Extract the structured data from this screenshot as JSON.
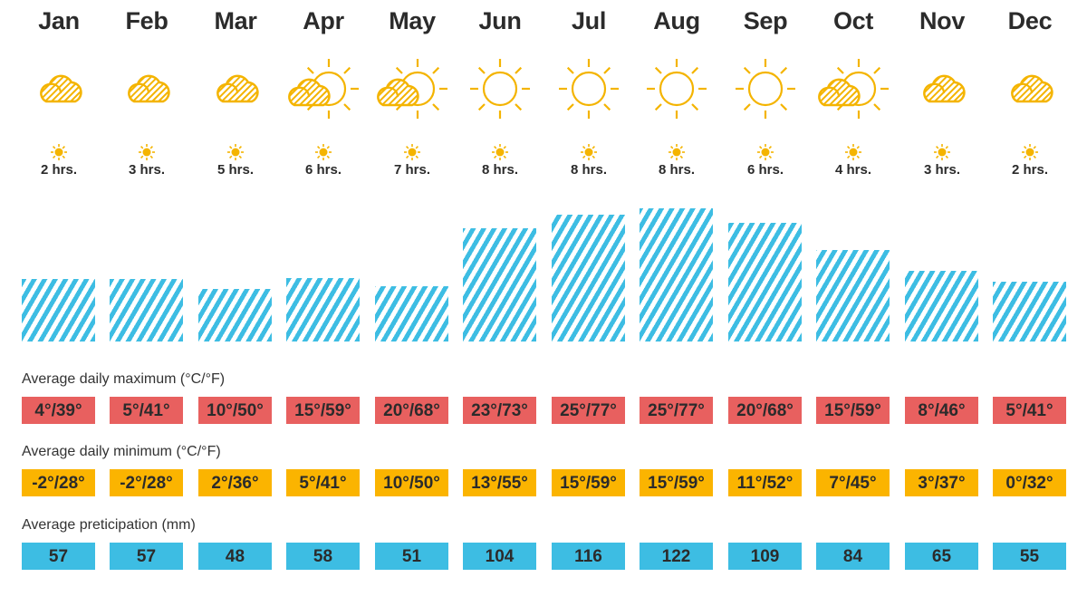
{
  "labels": {
    "max": "Average daily maximum (°C/°F)",
    "min": "Average daily minimum (°C/°F)",
    "precip": "Average preticipation (mm)"
  },
  "colors": {
    "max": "#e8605f",
    "min": "#fbb400",
    "precip": "#3dbde3",
    "icon": "#f4b400"
  },
  "months": [
    {
      "name": "Jan",
      "icon": "cloud-icon",
      "sun": "2 hrs.",
      "max": "4°/39°",
      "min": "-2°/28°",
      "precip": "57"
    },
    {
      "name": "Feb",
      "icon": "cloud-icon",
      "sun": "3 hrs.",
      "max": "5°/41°",
      "min": "-2°/28°",
      "precip": "57"
    },
    {
      "name": "Mar",
      "icon": "cloud-icon",
      "sun": "5 hrs.",
      "max": "10°/50°",
      "min": "2°/36°",
      "precip": "48"
    },
    {
      "name": "Apr",
      "icon": "partly-sunny-icon",
      "sun": "6 hrs.",
      "max": "15°/59°",
      "min": "5°/41°",
      "precip": "58"
    },
    {
      "name": "May",
      "icon": "partly-sunny-icon",
      "sun": "7 hrs.",
      "max": "20°/68°",
      "min": "10°/50°",
      "precip": "51"
    },
    {
      "name": "Jun",
      "icon": "sun-icon",
      "sun": "8 hrs.",
      "max": "23°/73°",
      "min": "13°/55°",
      "precip": "104"
    },
    {
      "name": "Jul",
      "icon": "sun-icon",
      "sun": "8 hrs.",
      "max": "25°/77°",
      "min": "15°/59°",
      "precip": "116"
    },
    {
      "name": "Aug",
      "icon": "sun-icon",
      "sun": "8 hrs.",
      "max": "25°/77°",
      "min": "15°/59°",
      "precip": "122"
    },
    {
      "name": "Sep",
      "icon": "sun-icon",
      "sun": "6 hrs.",
      "max": "20°/68°",
      "min": "11°/52°",
      "precip": "109"
    },
    {
      "name": "Oct",
      "icon": "partly-sunny-icon",
      "sun": "4 hrs.",
      "max": "15°/59°",
      "min": "7°/45°",
      "precip": "84"
    },
    {
      "name": "Nov",
      "icon": "cloud-icon",
      "sun": "3 hrs.",
      "max": "8°/46°",
      "min": "3°/37°",
      "precip": "65"
    },
    {
      "name": "Dec",
      "icon": "cloud-icon",
      "sun": "2 hrs.",
      "max": "5°/41°",
      "min": "0°/32°",
      "precip": "55"
    }
  ],
  "chart_data": {
    "type": "bar",
    "title": "",
    "categories": [
      "Jan",
      "Feb",
      "Mar",
      "Apr",
      "May",
      "Jun",
      "Jul",
      "Aug",
      "Sep",
      "Oct",
      "Nov",
      "Dec"
    ],
    "series": [
      {
        "name": "Average preticipation (mm)",
        "values": [
          57,
          57,
          48,
          58,
          51,
          104,
          116,
          122,
          109,
          84,
          65,
          55
        ]
      },
      {
        "name": "Average daily maximum (°C)",
        "values": [
          4,
          5,
          10,
          15,
          20,
          23,
          25,
          25,
          20,
          15,
          8,
          5
        ]
      },
      {
        "name": "Average daily maximum (°F)",
        "values": [
          39,
          41,
          50,
          59,
          68,
          73,
          77,
          77,
          68,
          59,
          46,
          41
        ]
      },
      {
        "name": "Average daily minimum (°C)",
        "values": [
          -2,
          -2,
          2,
          5,
          10,
          13,
          15,
          15,
          11,
          7,
          3,
          0
        ]
      },
      {
        "name": "Average daily minimum (°F)",
        "values": [
          28,
          28,
          36,
          41,
          50,
          55,
          59,
          59,
          52,
          45,
          37,
          32
        ]
      },
      {
        "name": "Sunshine hours per day",
        "values": [
          2,
          3,
          5,
          6,
          7,
          8,
          8,
          8,
          6,
          4,
          3,
          2
        ]
      }
    ],
    "icons": [
      "cloud",
      "cloud",
      "cloud",
      "partly-sunny",
      "partly-sunny",
      "sun",
      "sun",
      "sun",
      "sun",
      "partly-sunny",
      "cloud",
      "cloud"
    ],
    "xlabel": "",
    "ylabel": "",
    "grid": false,
    "legend": "none"
  }
}
